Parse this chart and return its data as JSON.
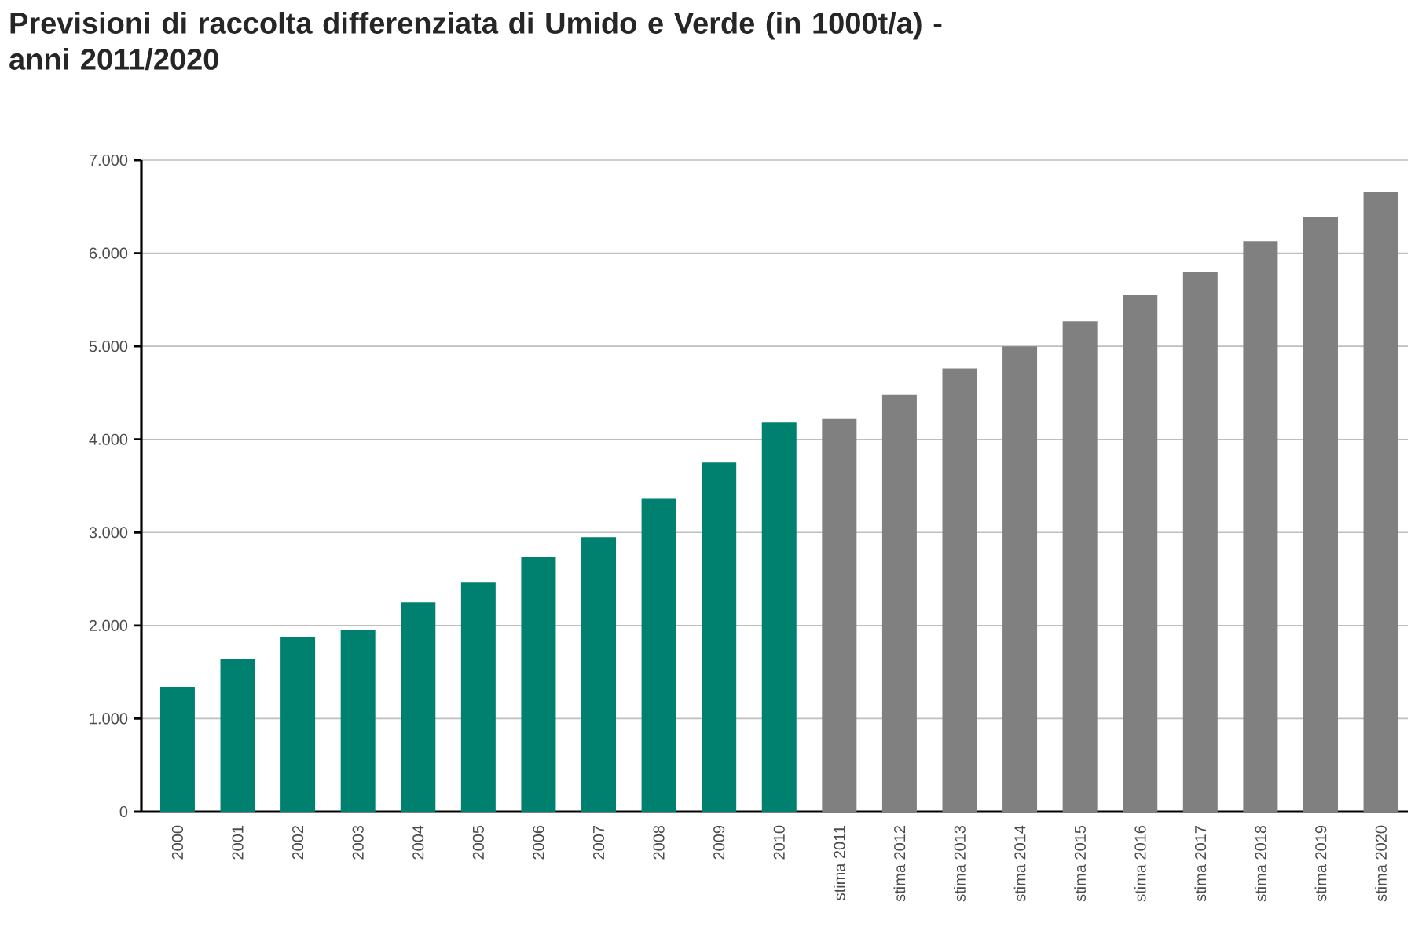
{
  "chart_data": {
    "type": "bar",
    "title": "Previsioni di raccolta differenziata di Umido e Verde (in 1000t/a) - anni 2011/2020",
    "categories": [
      "2000",
      "2001",
      "2002",
      "2003",
      "2004",
      "2005",
      "2006",
      "2007",
      "2008",
      "2009",
      "2010",
      "stima 2011",
      "stima 2012",
      "stima 2013",
      "stima 2014",
      "stima 2015",
      "stima 2016",
      "stima 2017",
      "stima 2018",
      "stima 2019",
      "stima 2020"
    ],
    "values": [
      1340,
      1640,
      1880,
      1950,
      2250,
      2460,
      2740,
      2950,
      3360,
      3750,
      4180,
      4220,
      4480,
      4760,
      5000,
      5270,
      5550,
      5800,
      6130,
      6390,
      6660
    ],
    "colors": [
      "#00806f",
      "#00806f",
      "#00806f",
      "#00806f",
      "#00806f",
      "#00806f",
      "#00806f",
      "#00806f",
      "#00806f",
      "#00806f",
      "#00806f",
      "#808080",
      "#808080",
      "#808080",
      "#808080",
      "#808080",
      "#808080",
      "#808080",
      "#808080",
      "#808080",
      "#808080"
    ],
    "ylim": [
      0,
      7000
    ],
    "yticks": [
      0,
      {
        "value": 1000,
        "label": "1.000"
      },
      {
        "value": 2000,
        "label": "2.000"
      },
      {
        "value": 3000,
        "label": "3.000"
      },
      {
        "value": 4000,
        "label": "4.000"
      },
      {
        "value": 5000,
        "label": "5.000"
      },
      {
        "value": 6000,
        "label": "6.000"
      },
      {
        "value": 7000,
        "label": "7.000"
      }
    ],
    "grid": "y"
  }
}
